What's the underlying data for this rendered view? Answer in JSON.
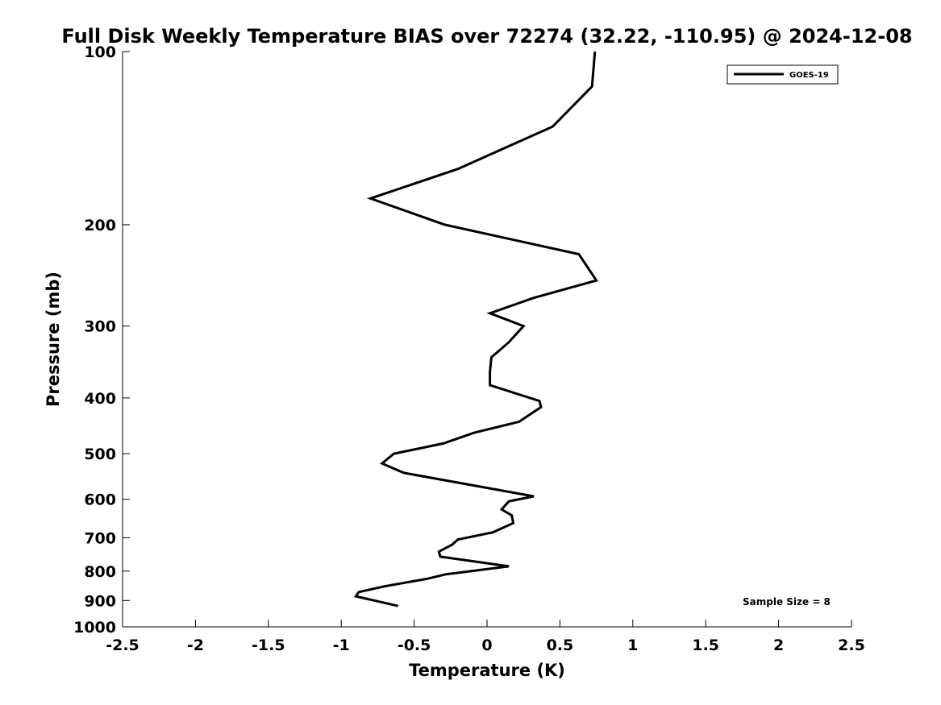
{
  "chart_data": {
    "type": "line",
    "title": "Full Disk Weekly Temperature BIAS over 72274 (32.22, -110.95) @ 2024-12-08",
    "xlabel": "Temperature (K)",
    "ylabel": "Pressure (mb)",
    "xlim": [
      -2.5,
      2.5
    ],
    "ylim": [
      100,
      1000
    ],
    "y_scale": "log",
    "y_reversed": true,
    "x_ticks": [
      "-2.5",
      "-2",
      "-1.5",
      "-1",
      "-0.5",
      "0",
      "0.5",
      "1",
      "1.5",
      "2",
      "2.5"
    ],
    "y_ticks": [
      "100",
      "200",
      "300",
      "400",
      "500",
      "600",
      "700",
      "800",
      "900",
      "1000"
    ],
    "grid": false,
    "legend_position": "top-right",
    "annotation": "Sample Size = 8",
    "series": [
      {
        "name": "GOES-19",
        "color": "#000000",
        "points": [
          [
            0.74,
            100
          ],
          [
            0.72,
            115
          ],
          [
            0.45,
            135
          ],
          [
            -0.2,
            160
          ],
          [
            -0.8,
            180
          ],
          [
            -0.29,
            200
          ],
          [
            0.63,
            225
          ],
          [
            0.75,
            250
          ],
          [
            0.32,
            268
          ],
          [
            0.02,
            285
          ],
          [
            0.25,
            300
          ],
          [
            0.15,
            320
          ],
          [
            0.03,
            340
          ],
          [
            0.02,
            360
          ],
          [
            0.02,
            380
          ],
          [
            0.36,
            405
          ],
          [
            0.37,
            415
          ],
          [
            0.22,
            440
          ],
          [
            -0.09,
            460
          ],
          [
            -0.3,
            480
          ],
          [
            -0.64,
            500
          ],
          [
            -0.72,
            520
          ],
          [
            -0.57,
            540
          ],
          [
            0.32,
            593
          ],
          [
            0.15,
            605
          ],
          [
            0.1,
            625
          ],
          [
            0.17,
            640
          ],
          [
            0.18,
            660
          ],
          [
            0.04,
            685
          ],
          [
            -0.2,
            705
          ],
          [
            -0.24,
            720
          ],
          [
            -0.33,
            740
          ],
          [
            -0.32,
            755
          ],
          [
            0.15,
            785
          ],
          [
            -0.28,
            810
          ],
          [
            -0.41,
            825
          ],
          [
            -0.7,
            850
          ],
          [
            -0.88,
            870
          ],
          [
            -0.9,
            885
          ],
          [
            -0.61,
            920
          ]
        ]
      }
    ]
  }
}
